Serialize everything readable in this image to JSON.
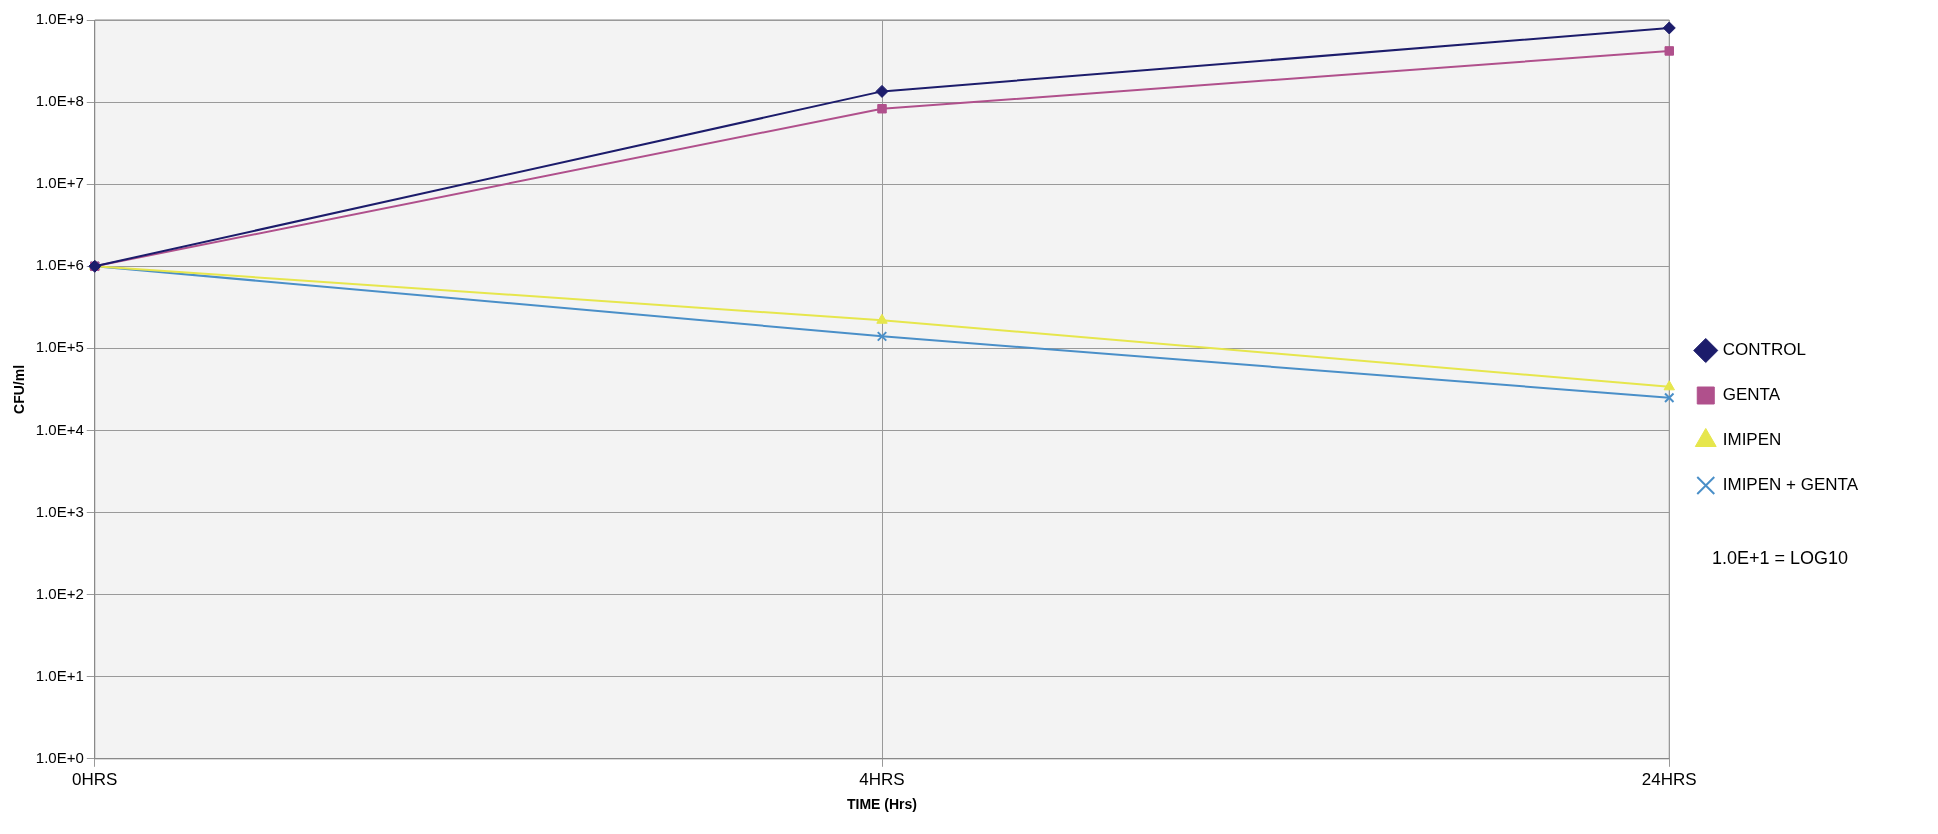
{
  "chart_data": {
    "type": "line",
    "xlabel": "TIME (Hrs)",
    "ylabel": "CFU/ml",
    "categories": [
      "0HRS",
      "4HRS",
      "24HRS"
    ],
    "series": [
      {
        "name": "CONTROL",
        "color": "#1c1c6b",
        "marker": "diamond",
        "values": [
          1000000,
          135000000,
          800000000
        ]
      },
      {
        "name": "GENTA",
        "color": "#b0508c",
        "marker": "square",
        "values": [
          1000000,
          83000000,
          420000000
        ]
      },
      {
        "name": "IMIPEN",
        "color": "#e6e64c",
        "marker": "triangle",
        "values": [
          1000000,
          220000,
          34000
        ]
      },
      {
        "name": "IMIPEN + GENTA",
        "color": "#4a8fc8",
        "marker": "cross",
        "values": [
          1000000,
          140000,
          25000
        ]
      }
    ],
    "log": "y",
    "ylim": [
      1,
      1000000000
    ],
    "yticks": [
      {
        "value": 1,
        "label": "1.0E+0"
      },
      {
        "value": 10,
        "label": "1.0E+1"
      },
      {
        "value": 100,
        "label": "1.0E+2"
      },
      {
        "value": 1000,
        "label": "1.0E+3"
      },
      {
        "value": 10000,
        "label": "1.0E+4"
      },
      {
        "value": 100000,
        "label": "1.0E+5"
      },
      {
        "value": 1000000,
        "label": "1.0E+6"
      },
      {
        "value": 10000000,
        "label": "1.0E+7"
      },
      {
        "value": 100000000,
        "label": "1.0E+8"
      },
      {
        "value": 1000000000,
        "label": "1.0E+9"
      }
    ],
    "grid": true,
    "legend": "right",
    "line_style": "solid",
    "annotations": [
      "1.0E+1 = LOG10"
    ]
  }
}
